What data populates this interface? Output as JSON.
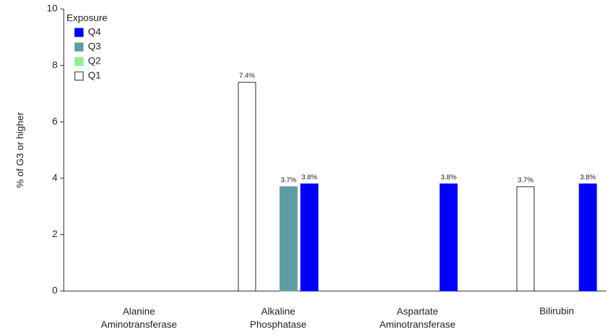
{
  "chart_data": {
    "type": "bar",
    "ylabel": "% of G3 or higher",
    "legend_title": "Exposure",
    "categories": [
      "Alanine Aminotransferase",
      "Alkaline Phosphatase",
      "Aspartate Aminotransferase",
      "Bilirubin"
    ],
    "series": [
      {
        "name": "Q1",
        "color": "#ffffff",
        "values": [
          null,
          7.4,
          null,
          3.7
        ],
        "value_labels": [
          null,
          "7.4%",
          null,
          "3.7%"
        ]
      },
      {
        "name": "Q2",
        "color": "#90ee90",
        "values": [
          null,
          null,
          null,
          null
        ],
        "value_labels": [
          null,
          null,
          null,
          null
        ]
      },
      {
        "name": "Q3",
        "color": "#5f9ea0",
        "values": [
          null,
          3.7,
          null,
          null
        ],
        "value_labels": [
          null,
          "3.7%",
          null,
          null
        ]
      },
      {
        "name": "Q4",
        "color": "#0000ff",
        "values": [
          null,
          3.8,
          3.8,
          3.8
        ],
        "value_labels": [
          null,
          "3.8%",
          "3.8%",
          "3.8%"
        ]
      }
    ],
    "ylim": [
      0,
      10
    ],
    "yticks": [
      0,
      2,
      4,
      6,
      8,
      10
    ],
    "grid": false,
    "legend": "upper left"
  }
}
